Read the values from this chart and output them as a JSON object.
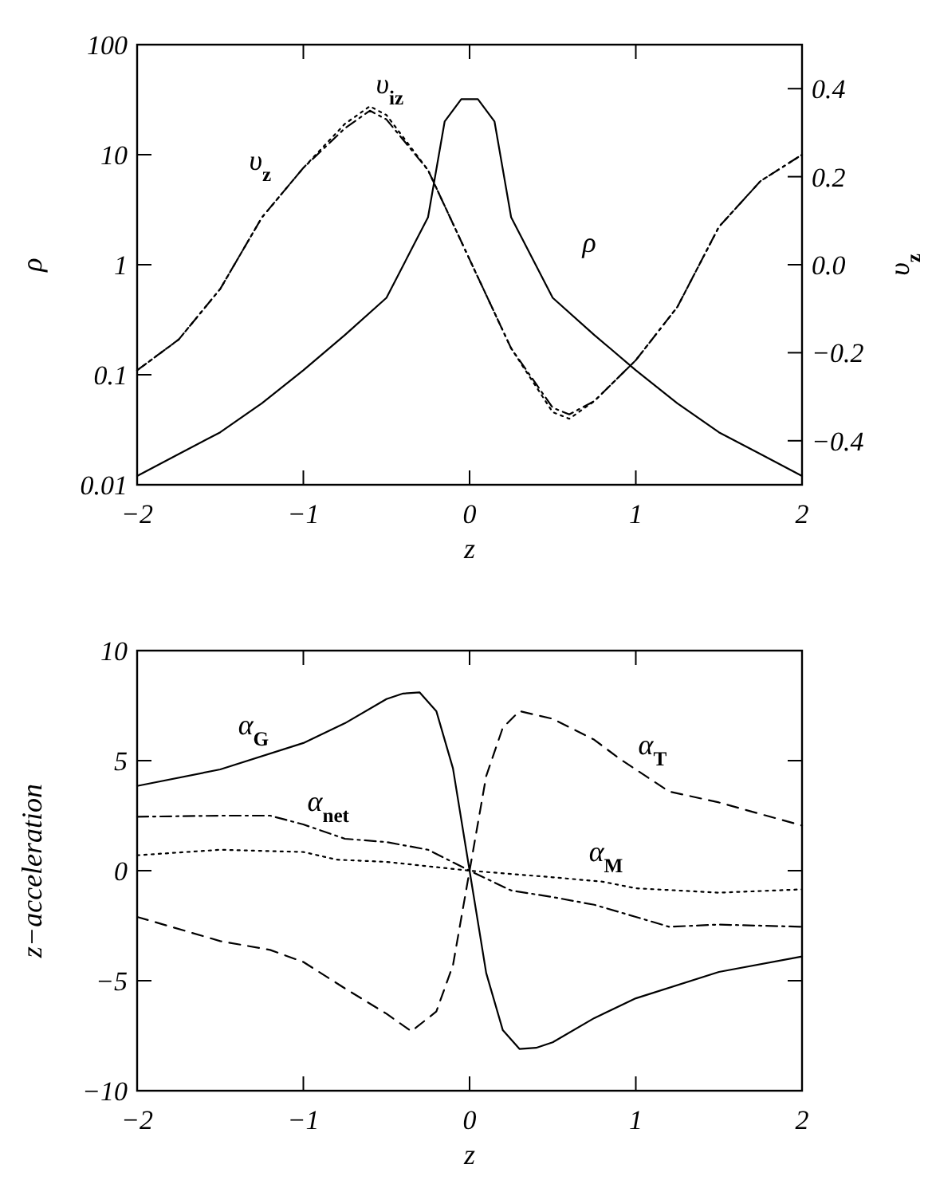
{
  "chart_data": [
    {
      "type": "line",
      "xlabel": "z",
      "ylabel": "ρ",
      "y2label": "υ$_{z}$",
      "log": "y",
      "xlim": [
        -2,
        2
      ],
      "xticks": [
        -2,
        -1,
        0,
        1,
        2
      ],
      "ylim": [
        0.01,
        100
      ],
      "yticks": [
        0.01,
        0.1,
        1,
        10,
        100
      ],
      "y2lim": [
        -0.5,
        0.5
      ],
      "y2ticks": [
        {
          "value": -0.4,
          "label": "−0.4"
        },
        {
          "value": -0.2,
          "label": "−0.2"
        },
        {
          "value": 0,
          "label": "0.0"
        },
        {
          "value": 0.2,
          "label": "0.2"
        },
        {
          "value": 0.4,
          "label": "0.4"
        }
      ],
      "grid": false,
      "x": [
        -2,
        -1.75,
        -1.5,
        -1.25,
        -1,
        -0.75,
        -0.5,
        -0.25,
        -0.15,
        -0.05,
        0.05,
        0.15,
        0.25,
        0.5,
        0.75,
        1,
        1.25,
        1.5,
        1.75,
        2
      ],
      "series": [
        {
          "name": "ρ",
          "color": "#000000",
          "line_style": "solid",
          "values": [
            0.012,
            0.019,
            0.03,
            0.055,
            0.11,
            0.23,
            0.5,
            2.7,
            20,
            32,
            32,
            20,
            2.7,
            0.5,
            0.23,
            0.11,
            0.055,
            0.03,
            0.019,
            0.012
          ]
        },
        {
          "name": "υ$_{z}$",
          "color": "#000000",
          "line_style": "dashdot",
          "axis": "y2",
          "x": [
            -2,
            -1.75,
            -1.5,
            -1.25,
            -1,
            -0.75,
            -0.6,
            -0.5,
            -0.25,
            0,
            0.25,
            0.5,
            0.6,
            0.75,
            1,
            1.25,
            1.5,
            1.75,
            2
          ],
          "values": [
            -0.24,
            -0.17,
            -0.055,
            0.107,
            0.22,
            0.31,
            0.35,
            0.33,
            0.215,
            0.012,
            -0.19,
            -0.325,
            -0.34,
            -0.31,
            -0.217,
            -0.096,
            0.086,
            0.19,
            0.25
          ]
        },
        {
          "name": "υ$_{iz}$",
          "color": "#000000",
          "line_style": "dotted",
          "axis": "y2",
          "x": [
            -2,
            -1.75,
            -1.5,
            -1.25,
            -1,
            -0.75,
            -0.6,
            -0.5,
            -0.25,
            0,
            0.25,
            0.5,
            0.6,
            0.75,
            1,
            1.25,
            1.5,
            1.75,
            2
          ],
          "values": [
            -0.24,
            -0.17,
            -0.055,
            0.107,
            0.22,
            0.32,
            0.36,
            0.34,
            0.215,
            0.012,
            -0.19,
            -0.335,
            -0.35,
            -0.31,
            -0.217,
            -0.096,
            0.086,
            0.19,
            0.25
          ]
        }
      ]
    },
    {
      "type": "line",
      "xlabel": "z",
      "ylabel": "z−acceleration",
      "xlim": [
        -2,
        2
      ],
      "xticks": [
        -2,
        -1,
        0,
        1,
        2
      ],
      "ylim": [
        -10,
        10
      ],
      "yticks": [
        {
          "value": -10,
          "label": "−10"
        },
        {
          "value": -5,
          "label": "−5"
        },
        0,
        5,
        10
      ],
      "grid": false,
      "series": [
        {
          "name": "α$_{G}$",
          "color": "#000000",
          "line_style": "solid",
          "x": [
            -2,
            -1.5,
            -1,
            -0.75,
            -0.5,
            -0.4,
            -0.3,
            -0.2,
            -0.1,
            0,
            0.1,
            0.2,
            0.3,
            0.4,
            0.5,
            0.75,
            1,
            1.5,
            2
          ],
          "values": [
            3.85,
            4.6,
            5.8,
            6.7,
            7.8,
            8.05,
            8.1,
            7.25,
            4.65,
            0,
            -4.65,
            -7.25,
            -8.1,
            -8.05,
            -7.8,
            -6.7,
            -5.8,
            -4.6,
            -3.9
          ]
        },
        {
          "name": "α$_{T}$",
          "color": "#000000",
          "line_style": "dashed",
          "x": [
            -2,
            -1.5,
            -1.2,
            -1,
            -0.75,
            -0.5,
            -0.35,
            -0.2,
            -0.1,
            0,
            0.1,
            0.2,
            0.3,
            0.5,
            0.75,
            0.9,
            1,
            1.2,
            1.5,
            2
          ],
          "values": [
            -2.1,
            -3.2,
            -3.6,
            -4.15,
            -5.35,
            -6.5,
            -7.3,
            -6.4,
            -4.3,
            0,
            4.3,
            6.5,
            7.25,
            6.9,
            5.95,
            5.1,
            4.6,
            3.6,
            3.1,
            2.05
          ]
        },
        {
          "name": "α$_{net}$",
          "color": "#000000",
          "line_style": "dashdot",
          "x": [
            -2,
            -1.5,
            -1.2,
            -1,
            -0.75,
            -0.5,
            -0.25,
            0,
            0.25,
            0.5,
            0.75,
            1,
            1.2,
            1.5,
            2
          ],
          "values": [
            2.45,
            2.5,
            2.5,
            2.1,
            1.45,
            1.3,
            0.95,
            0,
            -0.9,
            -1.2,
            -1.55,
            -2.1,
            -2.55,
            -2.45,
            -2.55
          ]
        },
        {
          "name": "α$_{M}$",
          "color": "#000000",
          "line_style": "dotted",
          "x": [
            -2,
            -1.5,
            -1,
            -0.8,
            -0.5,
            0,
            0.5,
            0.8,
            1,
            1.5,
            2
          ],
          "values": [
            0.7,
            0.95,
            0.85,
            0.5,
            0.4,
            0,
            -0.3,
            -0.5,
            -0.8,
            -1,
            -0.85
          ]
        }
      ]
    }
  ]
}
